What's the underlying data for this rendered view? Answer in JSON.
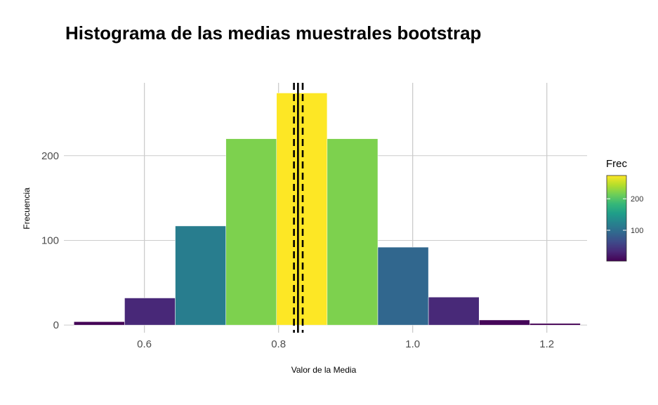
{
  "chart_data": {
    "type": "bar",
    "title": "Histograma de las medias muestrales bootstrap",
    "xlabel": "Valor de la Media",
    "ylabel": "Frecuencia",
    "xlim": [
      0.48,
      1.26
    ],
    "ylim": [
      -9,
      286
    ],
    "xticks": [
      0.6,
      0.8,
      1.0,
      1.2
    ],
    "xtick_labels": [
      "0.6",
      "0.8",
      "1.0",
      "1.2"
    ],
    "yticks": [
      0,
      100,
      200
    ],
    "ytick_labels": [
      "0",
      "100",
      "200"
    ],
    "grid": true,
    "bin_width": 0.0755,
    "bins": [
      {
        "x0": 0.495,
        "x1": 0.5705,
        "count": 4
      },
      {
        "x0": 0.5705,
        "x1": 0.646,
        "count": 32
      },
      {
        "x0": 0.646,
        "x1": 0.7215,
        "count": 117
      },
      {
        "x0": 0.7215,
        "x1": 0.797,
        "count": 220
      },
      {
        "x0": 0.797,
        "x1": 0.8725,
        "count": 274
      },
      {
        "x0": 0.8725,
        "x1": 0.948,
        "count": 220
      },
      {
        "x0": 0.948,
        "x1": 1.0235,
        "count": 92
      },
      {
        "x0": 1.0235,
        "x1": 1.099,
        "count": 33
      },
      {
        "x0": 1.099,
        "x1": 1.1745,
        "count": 6
      },
      {
        "x0": 1.1745,
        "x1": 1.25,
        "count": 2
      }
    ],
    "reference_lines": [
      {
        "kind": "mean",
        "x": 0.829,
        "style": "solid"
      },
      {
        "kind": "ci-lower",
        "x": 0.823,
        "style": "dashed"
      },
      {
        "kind": "ci-upper",
        "x": 0.836,
        "style": "dashed"
      }
    ],
    "fill_scale": {
      "name": "Frec",
      "range": [
        2,
        274
      ],
      "breaks": [
        100,
        200
      ],
      "break_labels": [
        "100",
        "200"
      ],
      "palette": "viridis",
      "colors": [
        "#440154",
        "#482878",
        "#3e4a89",
        "#31688e",
        "#26828e",
        "#1f9e89",
        "#35b779",
        "#6ece58",
        "#b5de2b",
        "#fde725"
      ]
    },
    "legend_position": "right"
  }
}
